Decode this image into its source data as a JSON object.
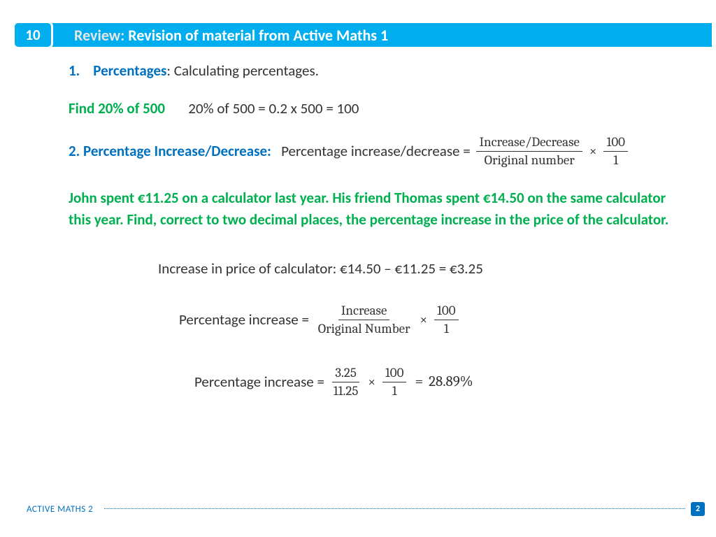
{
  "header": {
    "chapter": "10",
    "review_label": "Review:",
    "title": "Revision of material from Active Maths 1"
  },
  "section1": {
    "num": "1.",
    "heading": "Percentages",
    "desc": ": Calculating percentages."
  },
  "example1": {
    "prompt": "Find 20% of 500",
    "working": "20% of 500 = 0.2 x 500 = 100"
  },
  "section2": {
    "num_heading": "2. Percentage Increase/Decrease:",
    "lead": "Percentage increase/decrease =",
    "frac1_num": "Increase/Decrease",
    "frac1_den": "Original number",
    "mult": "×",
    "frac2_num": "100",
    "frac2_den": "1"
  },
  "problem": {
    "text": "John spent €11.25 on a calculator last year. His friend Thomas spent €14.50 on the same calculator this year. Find, correct to two decimal places, the percentage increase in the price of the calculator."
  },
  "step1": {
    "text": "Increase in price of calculator: €14.50 – €11.25 = €3.25"
  },
  "step2": {
    "lead": "Percentage increase =",
    "frac1_num": "Increase",
    "frac1_den": "Original Number",
    "mult": "×",
    "frac2_num": "100",
    "frac2_den": "1"
  },
  "step3": {
    "lead": "Percentage increase =",
    "frac1_num": "3.25",
    "frac1_den": "11.25",
    "mult": "×",
    "frac2_num": "100",
    "frac2_den": "1",
    "eq": "=",
    "result": "28.89%"
  },
  "footer": {
    "label": "ACTIVE MATHS  2",
    "page": "2"
  },
  "colors": {
    "brand_blue": "#00aeef",
    "text_blue": "#0070c0",
    "green": "#00b050",
    "body": "#333333"
  }
}
